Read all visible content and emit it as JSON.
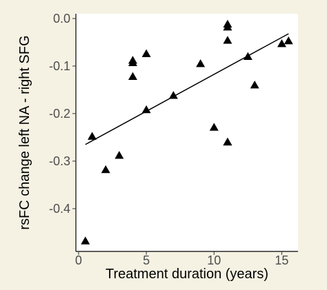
{
  "chart_data": {
    "type": "scatter",
    "title": "",
    "xlabel": "Treatment duration (years)",
    "ylabel": "rsFC change left NA - right SFG",
    "xlim": [
      -0.2,
      16.2
    ],
    "ylim": [
      -0.49,
      0.01
    ],
    "x_ticks": [
      0,
      5,
      10,
      15
    ],
    "x_tick_labels": [
      "0",
      "5",
      "10",
      "15"
    ],
    "y_ticks": [
      0.0,
      -0.1,
      -0.2,
      -0.3,
      -0.4
    ],
    "y_tick_labels": [
      "0.0",
      "-0.1",
      "-0.2",
      "-0.3",
      "-0.4"
    ],
    "grid": false,
    "legend": "none",
    "marker": "triangle",
    "point_color": "#000000",
    "line_color": "#000000",
    "series": [
      {
        "x": [
          0.5,
          1,
          2,
          3,
          4,
          4,
          4,
          5,
          5,
          7,
          9,
          10,
          11,
          11,
          11,
          11,
          11,
          12.5,
          13,
          15,
          15.5
        ],
        "y": [
          -0.468,
          -0.248,
          -0.318,
          -0.288,
          -0.088,
          -0.093,
          -0.122,
          -0.074,
          -0.192,
          -0.162,
          -0.095,
          -0.229,
          -0.26,
          -0.012,
          -0.018,
          -0.046,
          -0.26,
          -0.08,
          -0.14,
          -0.053,
          -0.047
        ]
      }
    ],
    "trend_line": {
      "x": [
        0.5,
        15.5
      ],
      "y": [
        -0.265,
        -0.032
      ]
    }
  }
}
